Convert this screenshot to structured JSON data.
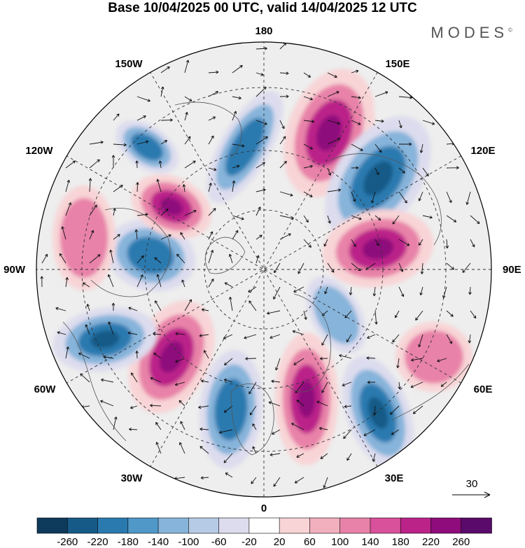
{
  "title": "Base 10/04/2025 00 UTC, valid 14/04/2025 12 UTC",
  "brand": "MODES",
  "brand_mark": "©",
  "map": {
    "projection": "north-polar-stereographic",
    "longitude_labels": {
      "top": "180",
      "bottom": "0",
      "left": "90W",
      "right": "90E",
      "upper_left_1": "150W",
      "upper_left_2": "120W",
      "lower_left_1": "60W",
      "lower_left_2": "30W",
      "upper_right_1": "150E",
      "upper_right_2": "120E",
      "lower_right_1": "60E",
      "lower_right_2": "30E"
    },
    "reference_vector_label": "30"
  },
  "colorbar": {
    "labels": [
      "-260",
      "-220",
      "-180",
      "-140",
      "-100",
      "-60",
      "-20",
      "20",
      "60",
      "100",
      "140",
      "180",
      "220",
      "260"
    ],
    "colors": [
      "#0e3a5c",
      "#165a87",
      "#2a7ab0",
      "#4f98c8",
      "#87b4da",
      "#b6cbe5",
      "#dcdcee",
      "#ffffff",
      "#f8d4d6",
      "#f2afbe",
      "#e882a8",
      "#d9519a",
      "#bb2389",
      "#8e0c7b",
      "#5a0a6a"
    ]
  },
  "anomaly_centres": [
    {
      "name": "pos-west-pacific",
      "sign": "positive",
      "level": 3
    },
    {
      "name": "neg-east-asia",
      "sign": "negative",
      "level": 3
    },
    {
      "name": "pos-siberia",
      "sign": "positive",
      "level": 3
    },
    {
      "name": "neg-europe",
      "sign": "negative",
      "level": 3
    },
    {
      "name": "pos-scandinavia",
      "sign": "positive",
      "level": 3
    },
    {
      "name": "neg-north-atlantic",
      "sign": "negative",
      "level": 2
    },
    {
      "name": "pos-labrador",
      "sign": "positive",
      "level": 3
    },
    {
      "name": "neg-east-us",
      "sign": "negative",
      "level": 3
    },
    {
      "name": "neg-canada",
      "sign": "negative",
      "level": 2
    },
    {
      "name": "pos-alaska",
      "sign": "positive",
      "level": 3
    },
    {
      "name": "neg-gulf-alaska",
      "sign": "negative",
      "level": 2
    },
    {
      "name": "neg-north-pacific",
      "sign": "negative",
      "level": 2
    },
    {
      "name": "pos-west-us",
      "sign": "positive",
      "level": 1
    },
    {
      "name": "pos-central-asia",
      "sign": "positive",
      "level": 1
    },
    {
      "name": "neg-middle-east",
      "sign": "negative",
      "level": 1
    }
  ]
}
